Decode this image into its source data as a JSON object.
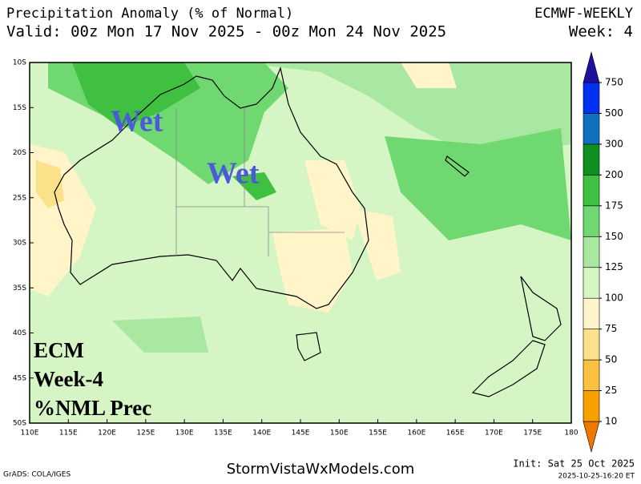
{
  "header": {
    "title": "Precipitation Anomaly (% of Normal)",
    "model": "ECMWF-WEEKLY",
    "valid": "Valid: 00z Mon 17 Nov 2025 - 00z Mon 24 Nov 2025",
    "week": "Week: 4"
  },
  "map": {
    "lat_labels": [
      "10S",
      "15S",
      "20S",
      "25S",
      "30S",
      "35S",
      "40S",
      "45S",
      "50S"
    ],
    "lon_labels": [
      "110E",
      "115E",
      "120E",
      "125E",
      "130E",
      "135E",
      "140E",
      "145E",
      "150E",
      "155E",
      "160E",
      "165E",
      "170E",
      "175E",
      "180"
    ],
    "annotations": [
      "Wet",
      "Wet"
    ],
    "overlay": [
      "ECM",
      "Week-4",
      "%NML Prec"
    ]
  },
  "colorbar": {
    "levels": [
      10,
      25,
      50,
      75,
      100,
      125,
      150,
      175,
      200,
      300,
      500,
      750
    ],
    "colors": [
      "#f07800",
      "#f8a000",
      "#fbc040",
      "#fbe28a",
      "#fff5c8",
      "#d6f5c4",
      "#a8e8a0",
      "#70d870",
      "#40c040",
      "#109020",
      "#1070c0",
      "#0030f0",
      "#2010a0"
    ]
  },
  "footer": {
    "credit": "GrADS: COLA/IGES",
    "site": "StormVistaWxModels.com",
    "init": "Init: Sat 25 Oct 2025",
    "timestamp": "2025-10-25-16:20 ET"
  }
}
